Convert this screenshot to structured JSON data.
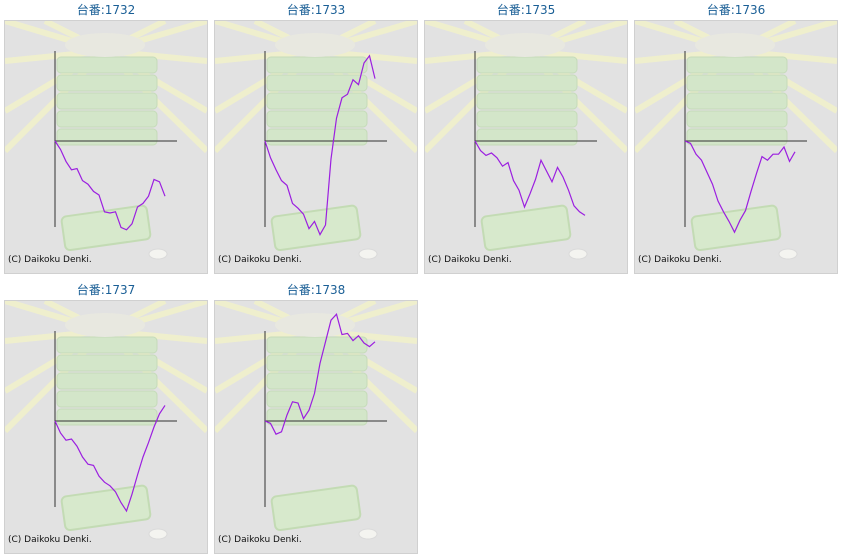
{
  "copyright": "(C) Daikoku Denki.",
  "colors": {
    "title": "#1a5f96",
    "line": "#9b1fe0",
    "bg": "#e2e2e2",
    "axis": "#333333"
  },
  "charts": [
    {
      "title": "台番:1732",
      "slump": [
        0,
        -0.7,
        -1.7,
        -2.4,
        -2.3,
        -3.3,
        -3.6,
        -4.2,
        -4.5,
        -5.9,
        -6.0,
        -5.9,
        -7.2,
        -7.4,
        -6.9,
        -5.5,
        -5.2,
        -4.6,
        -3.2,
        -3.4,
        -4.6
      ]
    },
    {
      "title": "台番:1733",
      "slump": [
        0,
        -1.4,
        -2.4,
        -3.3,
        -3.7,
        -5.2,
        -5.6,
        -6.1,
        -7.3,
        -6.7,
        -7.8,
        -7.0,
        -1.5,
        1.9,
        3.6,
        3.9,
        5.1,
        4.7,
        6.5,
        7.1,
        5.2
      ]
    },
    {
      "title": "台番:1735",
      "slump": [
        0,
        -0.8,
        -1.2,
        -1.0,
        -1.4,
        -2.1,
        -1.8,
        -3.3,
        -4.1,
        -5.5,
        -4.4,
        -3.2,
        -1.6,
        -2.5,
        -3.4,
        -2.2,
        -3.0,
        -4.1,
        -5.4,
        -5.9,
        -6.2
      ]
    },
    {
      "title": "台番:1736",
      "slump": [
        0,
        -0.2,
        -1.1,
        -1.6,
        -2.6,
        -3.6,
        -5.0,
        -5.9,
        -6.7,
        -7.6,
        -6.6,
        -5.8,
        -4.2,
        -2.7,
        -1.3,
        -1.6,
        -1.1,
        -1.1,
        -0.5,
        -1.7,
        -0.9
      ]
    },
    {
      "title": "台番:1737",
      "slump": [
        0,
        -1.0,
        -1.6,
        -1.5,
        -2.1,
        -3.0,
        -3.6,
        -3.7,
        -4.6,
        -5.1,
        -5.4,
        -5.9,
        -6.8,
        -7.5,
        -6.1,
        -4.5,
        -3.0,
        -1.8,
        -0.5,
        0.6,
        1.3
      ]
    },
    {
      "title": "台番:1738",
      "slump": [
        0,
        -0.2,
        -1.1,
        -0.9,
        0.5,
        1.6,
        1.5,
        0.2,
        0.9,
        2.3,
        4.8,
        6.6,
        8.4,
        8.9,
        7.2,
        7.3,
        6.7,
        7.1,
        6.5,
        6.2,
        6.6
      ]
    }
  ]
}
